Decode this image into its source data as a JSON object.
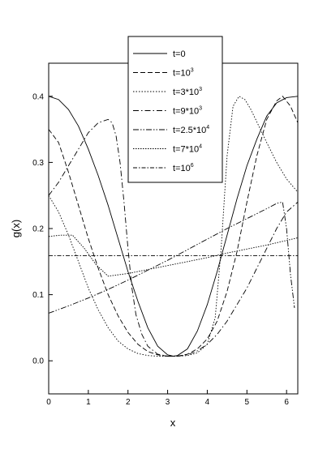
{
  "chart_data": {
    "type": "line",
    "title": "",
    "xlabel": "x",
    "ylabel": "g(x)",
    "xlim": [
      0,
      6.283
    ],
    "ylim": [
      -0.05,
      0.45
    ],
    "x_ticks": [
      0,
      1,
      2,
      3,
      4,
      5,
      6
    ],
    "y_ticks": [
      0.0,
      0.1,
      0.2,
      0.3,
      0.4
    ],
    "y_tick_labels": [
      "0.0",
      "0.1",
      "0.2",
      "0.3",
      "0.4"
    ],
    "grid": false,
    "legend_position": "top-center",
    "series": [
      {
        "name": "t=0",
        "name_parts": [
          "t=0",
          ""
        ],
        "dash": "solid",
        "x": [
          0,
          0.25,
          0.5,
          0.75,
          1,
          1.25,
          1.5,
          1.75,
          2,
          2.25,
          2.5,
          2.75,
          3,
          3.14,
          3.25,
          3.5,
          3.75,
          4,
          4.25,
          4.5,
          4.75,
          5,
          5.25,
          5.5,
          5.75,
          6,
          6.283
        ],
        "y": [
          0.4,
          0.395,
          0.38,
          0.355,
          0.32,
          0.28,
          0.235,
          0.185,
          0.135,
          0.09,
          0.05,
          0.022,
          0.009,
          0.007,
          0.008,
          0.018,
          0.045,
          0.085,
          0.135,
          0.19,
          0.245,
          0.295,
          0.335,
          0.37,
          0.39,
          0.398,
          0.4
        ]
      },
      {
        "name": "t=10^3",
        "name_parts": [
          "t=10",
          "3"
        ],
        "dash": "6,3",
        "x": [
          0,
          0.25,
          0.5,
          0.75,
          1,
          1.25,
          1.5,
          1.75,
          2,
          2.25,
          2.5,
          2.75,
          3,
          3.14,
          3.25,
          3.5,
          3.75,
          4,
          4.25,
          4.5,
          4.75,
          5,
          5.25,
          5.5,
          5.75,
          5.9,
          6.1,
          6.283
        ],
        "y": [
          0.35,
          0.33,
          0.285,
          0.235,
          0.185,
          0.14,
          0.1,
          0.068,
          0.043,
          0.025,
          0.014,
          0.009,
          0.007,
          0.007,
          0.007,
          0.01,
          0.018,
          0.033,
          0.06,
          0.105,
          0.165,
          0.24,
          0.31,
          0.365,
          0.393,
          0.4,
          0.385,
          0.36
        ]
      },
      {
        "name": "t=3*10^3",
        "name_parts": [
          "t=3*10",
          "3"
        ],
        "dash": "1.5,2",
        "x": [
          0,
          0.25,
          0.5,
          0.75,
          1,
          1.25,
          1.5,
          1.75,
          2,
          2.25,
          2.5,
          2.75,
          3,
          3.25,
          3.5,
          3.75,
          4,
          4.2,
          4.35,
          4.5,
          4.65,
          4.8,
          4.95,
          5.1,
          5.3,
          5.5,
          5.75,
          6,
          6.283
        ],
        "y": [
          0.25,
          0.225,
          0.19,
          0.15,
          0.11,
          0.077,
          0.05,
          0.03,
          0.018,
          0.011,
          0.008,
          0.007,
          0.007,
          0.007,
          0.008,
          0.012,
          0.025,
          0.065,
          0.17,
          0.31,
          0.385,
          0.4,
          0.395,
          0.38,
          0.355,
          0.33,
          0.3,
          0.275,
          0.255
        ]
      },
      {
        "name": "t=9*10^3",
        "name_parts": [
          "t=9*10",
          "3"
        ],
        "dash": "7,3,1.5,3",
        "x": [
          0,
          0.25,
          0.5,
          0.75,
          1,
          1.25,
          1.5,
          1.6,
          1.7,
          1.8,
          1.9,
          2,
          2.1,
          2.2,
          2.35,
          2.5,
          2.75,
          3,
          3.25,
          3.5,
          3.75,
          4,
          4.25,
          4.5,
          4.75,
          5,
          5.25,
          5.5,
          5.75,
          6,
          6.283
        ],
        "y": [
          0.25,
          0.27,
          0.295,
          0.32,
          0.345,
          0.36,
          0.365,
          0.36,
          0.34,
          0.3,
          0.24,
          0.17,
          0.11,
          0.07,
          0.04,
          0.022,
          0.01,
          0.007,
          0.007,
          0.009,
          0.015,
          0.025,
          0.04,
          0.06,
          0.085,
          0.11,
          0.14,
          0.17,
          0.2,
          0.225,
          0.24
        ]
      },
      {
        "name": "t=2.5*10^4",
        "name_parts": [
          "t=2.5*10",
          "4"
        ],
        "dash": "7,2,1.5,2,1.5,2",
        "x": [
          0,
          0.5,
          1,
          1.5,
          2,
          2.5,
          3,
          3.5,
          4,
          4.5,
          5,
          5.5,
          5.75,
          5.9,
          6,
          6.1,
          6.2
        ],
        "y": [
          0.072,
          0.083,
          0.095,
          0.108,
          0.122,
          0.137,
          0.152,
          0.168,
          0.184,
          0.2,
          0.215,
          0.23,
          0.238,
          0.24,
          0.2,
          0.13,
          0.08
        ]
      },
      {
        "name": "t=7*10^4",
        "name_parts": [
          "t=7*10",
          "4"
        ],
        "dash": "1.5,1.5",
        "x": [
          0,
          0.3,
          0.6,
          0.9,
          1.2,
          1.5,
          2,
          2.5,
          3,
          3.5,
          4,
          4.5,
          5,
          5.5,
          6,
          6.283
        ],
        "y": [
          0.188,
          0.19,
          0.19,
          0.17,
          0.145,
          0.128,
          0.132,
          0.138,
          0.144,
          0.15,
          0.156,
          0.163,
          0.169,
          0.175,
          0.182,
          0.186
        ]
      },
      {
        "name": "t=10^6",
        "name_parts": [
          "t=10",
          "6"
        ],
        "dash": "5,2,1.5,2",
        "x": [
          0,
          6.283
        ],
        "y": [
          0.159,
          0.159
        ]
      }
    ]
  }
}
